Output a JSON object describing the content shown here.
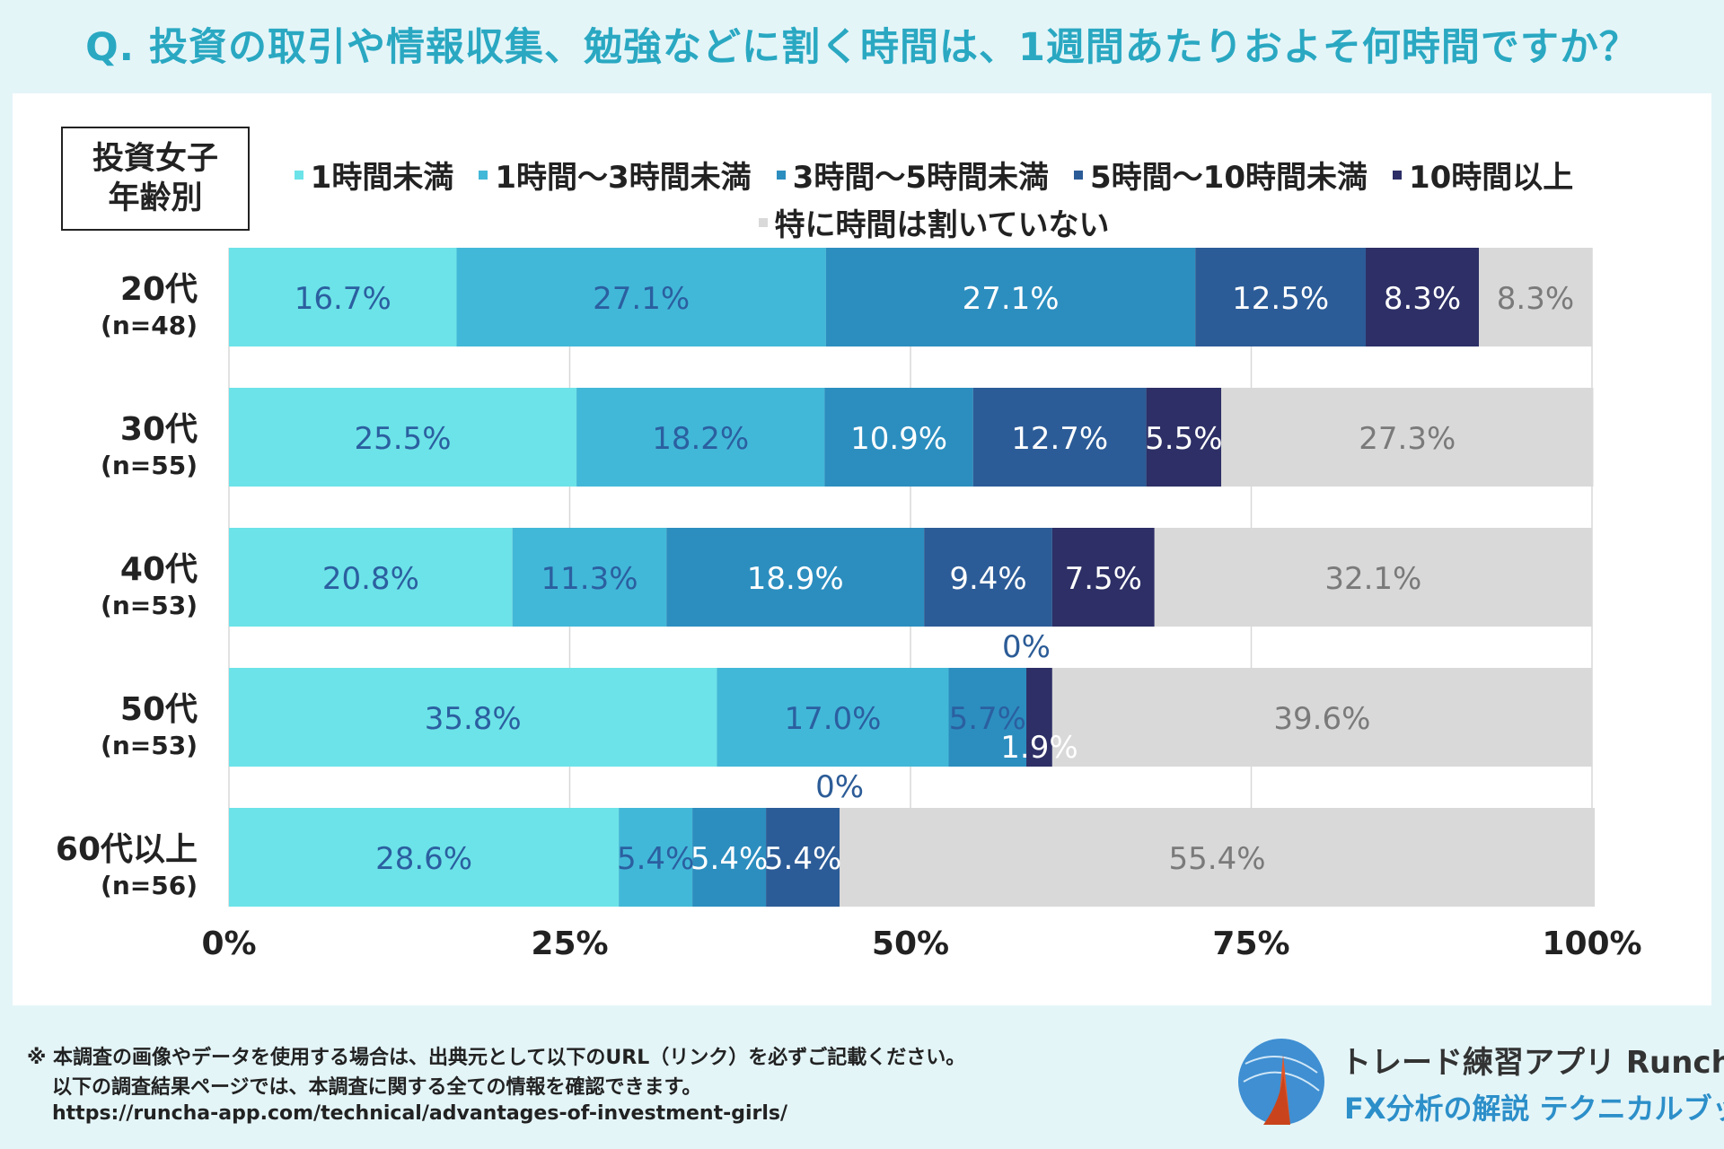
{
  "title": "Q. 投資の取引や情報収集、勉強などに割く時間は、1週間あたりおよそ何時間ですか？",
  "group_label": [
    "投資女子",
    "年齢別"
  ],
  "chart_data": {
    "type": "bar",
    "orientation": "horizontal",
    "stacked": true,
    "xlim": [
      0,
      100
    ],
    "x_ticks": [
      "0%",
      "25%",
      "50%",
      "75%",
      "100%"
    ],
    "categories": [
      "20代",
      "30代",
      "40代",
      "50代",
      "60代以上"
    ],
    "category_n": [
      "(n=48)",
      "(n=55)",
      "(n=53)",
      "(n=53)",
      "(n=56)"
    ],
    "series": [
      {
        "name": "1時間未満",
        "color": "#6ce3e8",
        "label_color": "#2b5fa0",
        "values": [
          16.7,
          25.5,
          20.8,
          35.8,
          28.6
        ],
        "labels": [
          "16.7%",
          "25.5%",
          "20.8%",
          "35.8%",
          "28.6%"
        ]
      },
      {
        "name": "1時間〜3時間未満",
        "color": "#42b8d8",
        "label_color": "#2b5fa0",
        "values": [
          27.1,
          18.2,
          11.3,
          17.0,
          5.4
        ],
        "labels": [
          "27.1%",
          "18.2%",
          "11.3%",
          "17.0%",
          "5.4%"
        ]
      },
      {
        "name": "3時間〜5時間未満",
        "color": "#2c8ebf",
        "label_color": "#ffffff",
        "values": [
          27.1,
          10.9,
          18.9,
          5.7,
          5.4
        ],
        "labels": [
          "27.1%",
          "10.9%",
          "18.9%",
          "5.7%",
          "5.4%"
        ]
      },
      {
        "name": "5時間〜10時間未満",
        "color": "#2c5c97",
        "label_color": "#ffffff",
        "values": [
          12.5,
          12.7,
          9.4,
          0,
          5.4
        ],
        "labels": [
          "12.5%",
          "12.7%",
          "9.4%",
          "0%",
          "5.4%"
        ]
      },
      {
        "name": "10時間以上",
        "color": "#2d2f66",
        "label_color": "#ffffff",
        "values": [
          8.3,
          5.5,
          7.5,
          1.9,
          0
        ],
        "labels": [
          "8.3%",
          "5.5%",
          "7.5%",
          "1.9%",
          "0%"
        ]
      },
      {
        "name": "特に時間は割いていない",
        "color": "#d9d9d9",
        "label_color": "#7a7a7a",
        "values": [
          8.3,
          27.3,
          32.1,
          39.6,
          55.4
        ],
        "labels": [
          "8.3%",
          "27.3%",
          "32.1%",
          "39.6%",
          "55.4%"
        ]
      }
    ]
  },
  "footnote": [
    "※ 本調査の画像やデータを使用する場合は、出典元として以下のURL（リンク）を必ずご記載ください。",
    "以下の調査結果ページでは、本調査に関する全ての情報を確認できます。",
    "https://runcha-app.com/technical/advantages-of-investment-girls/"
  ],
  "brand": {
    "name": "トレード練習アプリ  Runcha",
    "subtitle": "FX分析の解説  テクニカルブック"
  }
}
